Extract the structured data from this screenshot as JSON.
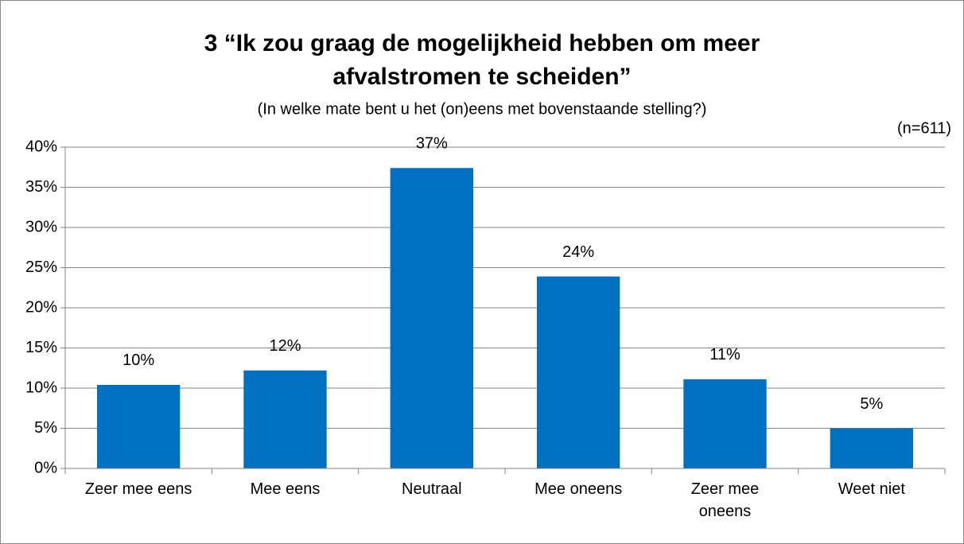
{
  "chart_data": {
    "type": "bar",
    "title_lines": [
      "3 “Ik zou graag de mogelijkheid hebben om meer",
      "afvalstromen te scheiden”"
    ],
    "subtitle": "(In welke mate bent u het (on)eens met bovenstaande stelling?)",
    "note": "(n=611)",
    "categories": [
      "Zeer mee eens",
      "Mee eens",
      "Neutraal",
      "Mee oneens",
      "Zeer mee oneens",
      "Weet niet"
    ],
    "values": [
      10.4,
      12.2,
      37.4,
      23.9,
      11.1,
      5.0
    ],
    "value_labels": [
      "10%",
      "12%",
      "37%",
      "24%",
      "11%",
      "5%"
    ],
    "color": "#0070c0",
    "ylim": [
      0,
      40
    ],
    "yticks": [
      {
        "value": 0,
        "label": "0%"
      },
      {
        "value": 5,
        "label": "5%"
      },
      {
        "value": 10,
        "label": "10%"
      },
      {
        "value": 15,
        "label": "15%"
      },
      {
        "value": 20,
        "label": "20%"
      },
      {
        "value": 25,
        "label": "25%"
      },
      {
        "value": 30,
        "label": "30%"
      },
      {
        "value": 35,
        "label": "35%"
      },
      {
        "value": 40,
        "label": "40%"
      }
    ],
    "grid": true
  }
}
